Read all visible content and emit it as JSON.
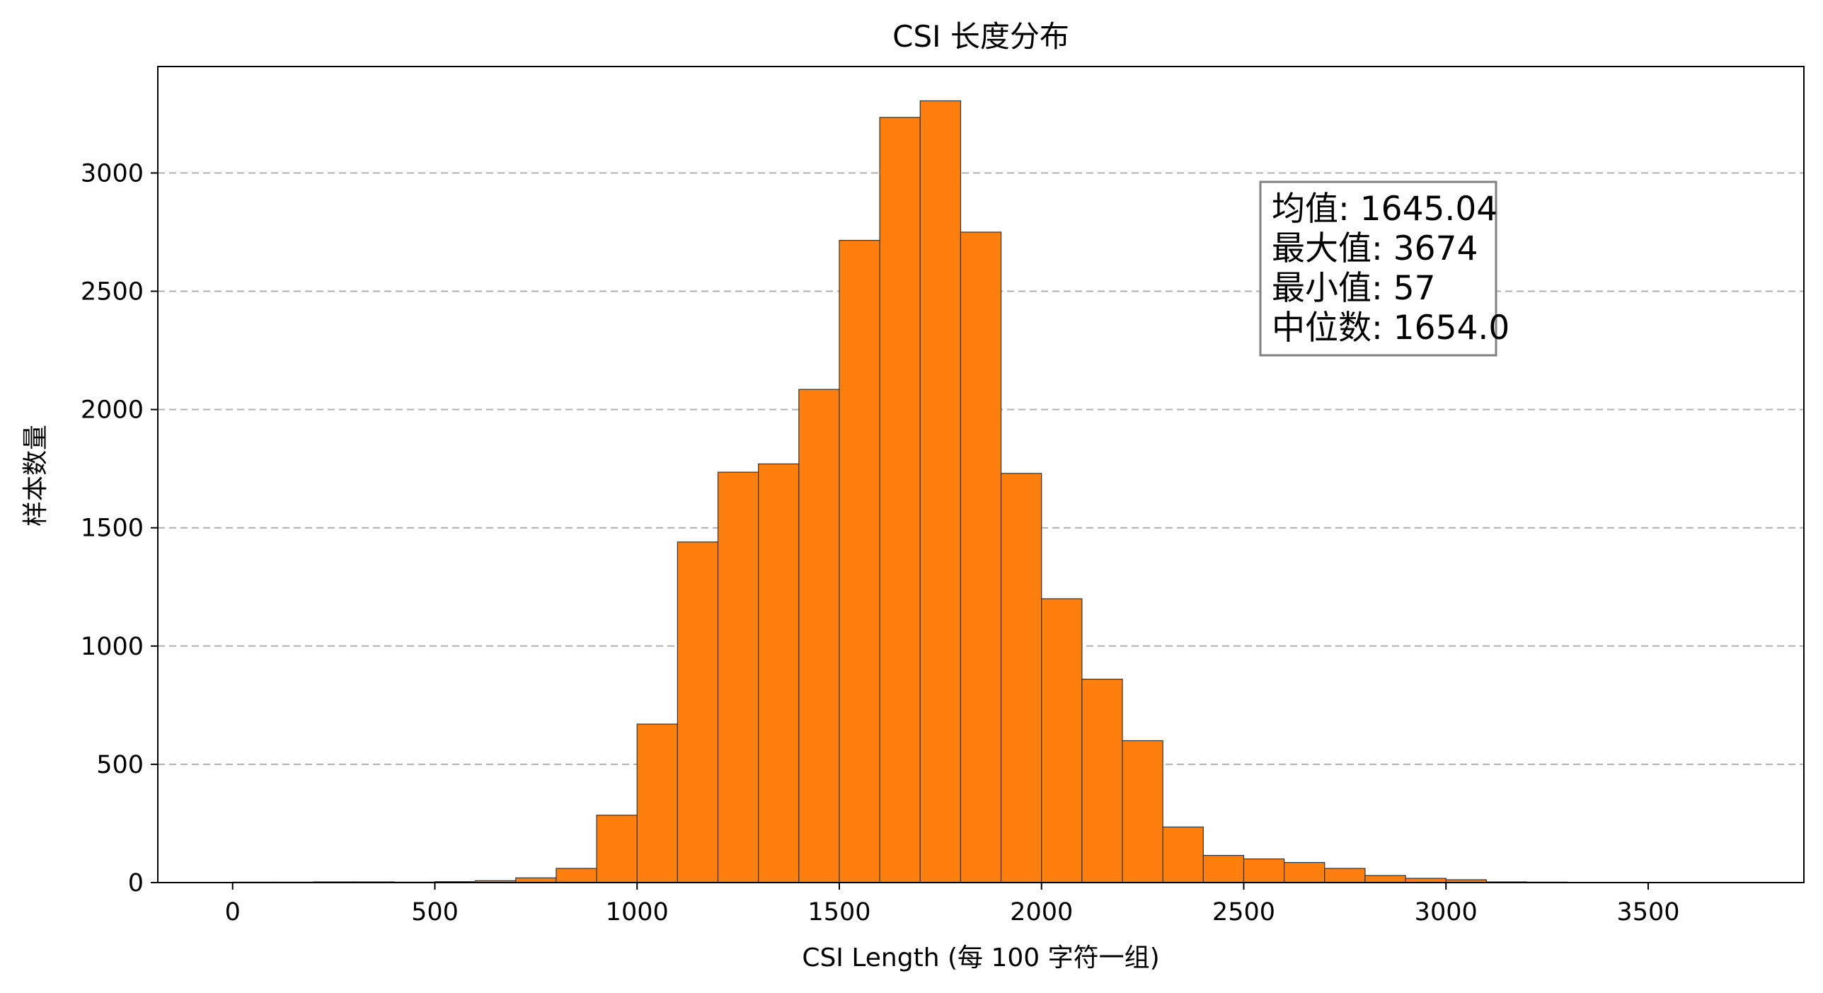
{
  "chart_data": {
    "type": "bar",
    "subtype": "histogram",
    "title": "CSI 长度分布",
    "xlabel": "CSI Length (每 100 字符一组)",
    "ylabel": "样本数量",
    "xlim": [
      -185,
      3885
    ],
    "ylim": [
      0,
      3450
    ],
    "xticks": [
      0,
      500,
      1000,
      1500,
      2000,
      2500,
      3000,
      3500
    ],
    "yticks": [
      0,
      500,
      1000,
      1500,
      2000,
      2500,
      3000
    ],
    "grid": "y-dashed",
    "bar_color": "#ff7f0e",
    "edge_color": "#333333",
    "bin_width": 100,
    "bins": [
      {
        "start": 0,
        "value": 2
      },
      {
        "start": 100,
        "value": 2
      },
      {
        "start": 200,
        "value": 3
      },
      {
        "start": 300,
        "value": 3
      },
      {
        "start": 400,
        "value": 2
      },
      {
        "start": 500,
        "value": 4
      },
      {
        "start": 600,
        "value": 8
      },
      {
        "start": 700,
        "value": 20
      },
      {
        "start": 800,
        "value": 60
      },
      {
        "start": 900,
        "value": 285
      },
      {
        "start": 1000,
        "value": 670
      },
      {
        "start": 1100,
        "value": 1440
      },
      {
        "start": 1200,
        "value": 1735
      },
      {
        "start": 1300,
        "value": 1770
      },
      {
        "start": 1400,
        "value": 2085
      },
      {
        "start": 1500,
        "value": 2715
      },
      {
        "start": 1600,
        "value": 3235
      },
      {
        "start": 1700,
        "value": 3305
      },
      {
        "start": 1800,
        "value": 2750
      },
      {
        "start": 1900,
        "value": 1730
      },
      {
        "start": 2000,
        "value": 1200
      },
      {
        "start": 2100,
        "value": 860
      },
      {
        "start": 2200,
        "value": 600
      },
      {
        "start": 2300,
        "value": 235
      },
      {
        "start": 2400,
        "value": 115
      },
      {
        "start": 2500,
        "value": 100
      },
      {
        "start": 2600,
        "value": 85
      },
      {
        "start": 2700,
        "value": 60
      },
      {
        "start": 2800,
        "value": 30
      },
      {
        "start": 2900,
        "value": 18
      },
      {
        "start": 3000,
        "value": 12
      },
      {
        "start": 3100,
        "value": 3
      },
      {
        "start": 3200,
        "value": 2
      },
      {
        "start": 3300,
        "value": 1
      },
      {
        "start": 3400,
        "value": 1
      },
      {
        "start": 3500,
        "value": 1
      },
      {
        "start": 3600,
        "value": 1
      }
    ],
    "annotation": {
      "position": "top-right",
      "lines": [
        "均值: 1645.04",
        "最大值: 3674",
        "最小值: 57",
        "中位数: 1654.0"
      ]
    }
  }
}
